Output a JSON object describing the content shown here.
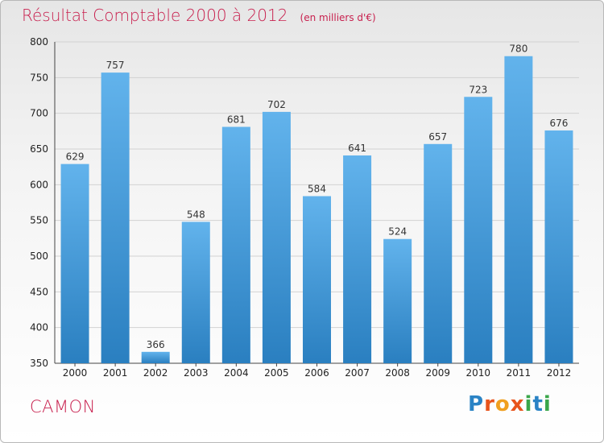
{
  "title": "Résultat Comptable 2000 à 2012",
  "unit": "(en milliers d'€)",
  "city": "CAMON",
  "logo": {
    "text": "Proxiti",
    "colors": [
      "#2a83c5",
      "#e8541c",
      "#f0a020",
      "#e8541c",
      "#3aa64a",
      "#2a83c5",
      "#3aa64a"
    ]
  },
  "colors": {
    "title": "#c8204e",
    "bar_light": "#62b3ec",
    "bar_dark": "#2a7fc0"
  },
  "chart_data": {
    "type": "bar",
    "categories": [
      "2000",
      "2001",
      "2002",
      "2003",
      "2004",
      "2005",
      "2006",
      "2007",
      "2008",
      "2009",
      "2010",
      "2011",
      "2012"
    ],
    "values": [
      629,
      757,
      366,
      548,
      681,
      702,
      584,
      641,
      524,
      657,
      723,
      780,
      676
    ],
    "ylim": [
      350,
      800
    ],
    "yticks": [
      350,
      400,
      450,
      500,
      550,
      600,
      650,
      700,
      750,
      800
    ],
    "grid": true
  }
}
